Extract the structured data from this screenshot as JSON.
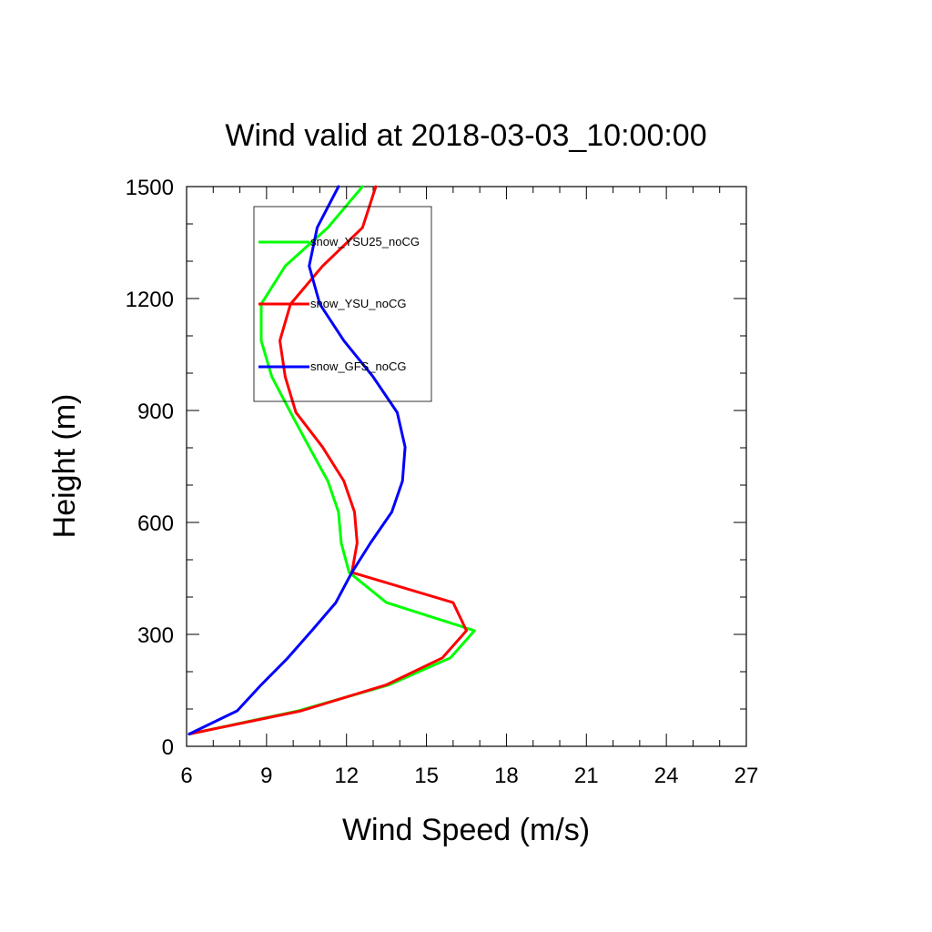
{
  "chart_data": {
    "type": "line",
    "title": "Wind valid at 2018-03-03_10:00:00",
    "xlabel": "Wind Speed (m/s)",
    "ylabel": "Height (m)",
    "xlim": [
      6,
      27
    ],
    "ylim": [
      0,
      1500
    ],
    "xticks": [
      6,
      9,
      12,
      15,
      18,
      21,
      24,
      27
    ],
    "yticks": [
      0,
      300,
      600,
      900,
      1200,
      1500
    ],
    "grid": false,
    "legend_position": "top-left",
    "series": [
      {
        "name": "snow_YSU25_noCG",
        "color": "#00ff00",
        "points": [
          [
            6.1,
            33
          ],
          [
            10.2,
            95
          ],
          [
            13.6,
            165
          ],
          [
            15.9,
            237
          ],
          [
            16.8,
            310
          ],
          [
            13.5,
            385
          ],
          [
            12.1,
            466
          ],
          [
            11.8,
            545
          ],
          [
            11.7,
            628
          ],
          [
            11.3,
            711
          ],
          [
            10.6,
            802
          ],
          [
            9.9,
            895
          ],
          [
            9.2,
            990
          ],
          [
            8.8,
            1087
          ],
          [
            8.8,
            1185
          ],
          [
            9.7,
            1287
          ],
          [
            11.3,
            1390
          ],
          [
            12.6,
            1500
          ]
        ]
      },
      {
        "name": "snow_YSU_noCG",
        "color": "#ff0000",
        "points": [
          [
            6.1,
            33
          ],
          [
            10.3,
            95
          ],
          [
            13.5,
            165
          ],
          [
            15.6,
            237
          ],
          [
            16.5,
            310
          ],
          [
            16.0,
            385
          ],
          [
            12.2,
            466
          ],
          [
            12.4,
            545
          ],
          [
            12.3,
            628
          ],
          [
            11.9,
            711
          ],
          [
            11.1,
            802
          ],
          [
            10.1,
            895
          ],
          [
            9.7,
            990
          ],
          [
            9.5,
            1087
          ],
          [
            9.9,
            1185
          ],
          [
            11.1,
            1287
          ],
          [
            12.6,
            1390
          ],
          [
            13.1,
            1500
          ]
        ]
      },
      {
        "name": "snow_GFS_noCG",
        "color": "#0000ff",
        "points": [
          [
            6.1,
            33
          ],
          [
            7.9,
            95
          ],
          [
            8.8,
            165
          ],
          [
            9.8,
            237
          ],
          [
            10.7,
            310
          ],
          [
            11.6,
            385
          ],
          [
            12.2,
            466
          ],
          [
            12.9,
            545
          ],
          [
            13.7,
            628
          ],
          [
            14.1,
            711
          ],
          [
            14.2,
            802
          ],
          [
            13.9,
            895
          ],
          [
            13.0,
            990
          ],
          [
            11.9,
            1087
          ],
          [
            11.0,
            1185
          ],
          [
            10.6,
            1287
          ],
          [
            10.9,
            1390
          ],
          [
            11.7,
            1500
          ]
        ]
      }
    ]
  }
}
